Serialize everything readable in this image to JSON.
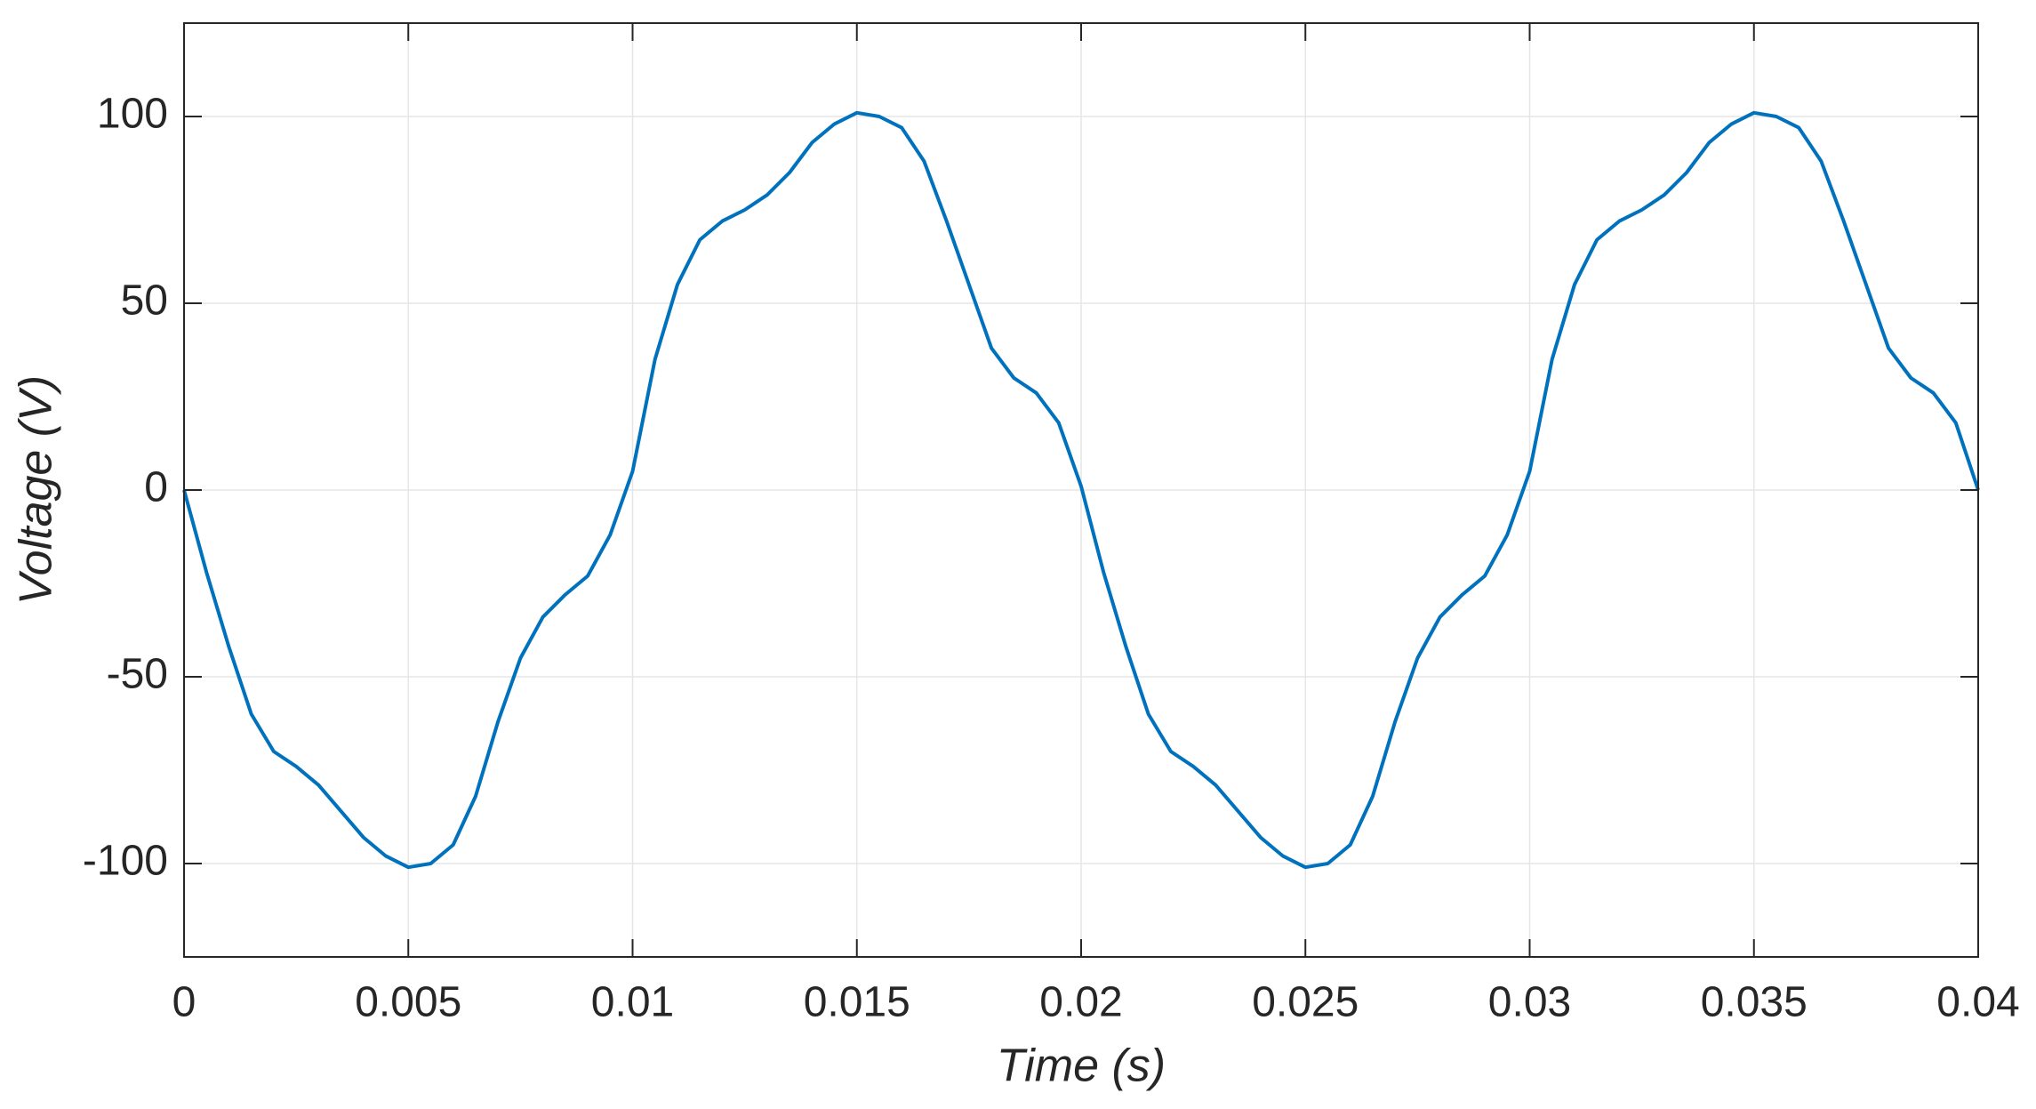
{
  "chart_data": {
    "type": "line",
    "xlabel": "Time  (s)",
    "ylabel": "Voltage  (V)",
    "x": [
      0,
      0.0005,
      0.001,
      0.0015,
      0.002,
      0.0025,
      0.003,
      0.0035,
      0.004,
      0.0045,
      0.005,
      0.0055,
      0.006,
      0.0065,
      0.007,
      0.0075,
      0.008,
      0.0085,
      0.009,
      0.0095,
      0.01,
      0.0105,
      0.011,
      0.0115,
      0.012,
      0.0125,
      0.013,
      0.0135,
      0.014,
      0.0145,
      0.015,
      0.0155,
      0.016,
      0.0165,
      0.017,
      0.0175,
      0.018,
      0.0185,
      0.019,
      0.0195,
      0.02,
      0.0205,
      0.021,
      0.0215,
      0.022,
      0.0225,
      0.023,
      0.0235,
      0.024,
      0.0245,
      0.025,
      0.0255,
      0.026,
      0.0265,
      0.027,
      0.0275,
      0.028,
      0.0285,
      0.029,
      0.0295,
      0.03,
      0.0305,
      0.031,
      0.0315,
      0.032,
      0.0325,
      0.033,
      0.0335,
      0.034,
      0.0345,
      0.035,
      0.0355,
      0.036,
      0.0365,
      0.037,
      0.0375,
      0.038,
      0.0385,
      0.039,
      0.0395,
      0.04
    ],
    "series": [
      {
        "name": "Voltage",
        "color": "#0072bd",
        "values": [
          0,
          -22,
          -42,
          -60,
          -70,
          -74,
          -79,
          -86,
          -93,
          -98,
          -101,
          -100,
          -95,
          -82,
          -62,
          -45,
          -34,
          -28,
          -23,
          -12,
          5,
          35,
          55,
          67,
          72,
          75,
          79,
          85,
          93,
          98,
          101,
          100,
          97,
          88,
          72,
          55,
          38,
          30,
          26,
          18,
          1,
          -22,
          -42,
          -60,
          -70,
          -74,
          -79,
          -86,
          -93,
          -98,
          -101,
          -100,
          -95,
          -82,
          -62,
          -45,
          -34,
          -28,
          -23,
          -12,
          5,
          35,
          55,
          67,
          72,
          75,
          79,
          85,
          93,
          98,
          101,
          100,
          97,
          88,
          72,
          55,
          38,
          30,
          26,
          18,
          0
        ]
      }
    ],
    "xlim": [
      0,
      0.04
    ],
    "xticks": [
      0,
      0.005,
      0.01,
      0.015,
      0.02,
      0.025,
      0.03,
      0.035,
      0.04
    ],
    "ylim": [
      -125,
      125
    ],
    "yticks": [
      -100,
      -50,
      0,
      50,
      100
    ],
    "grid": true
  }
}
